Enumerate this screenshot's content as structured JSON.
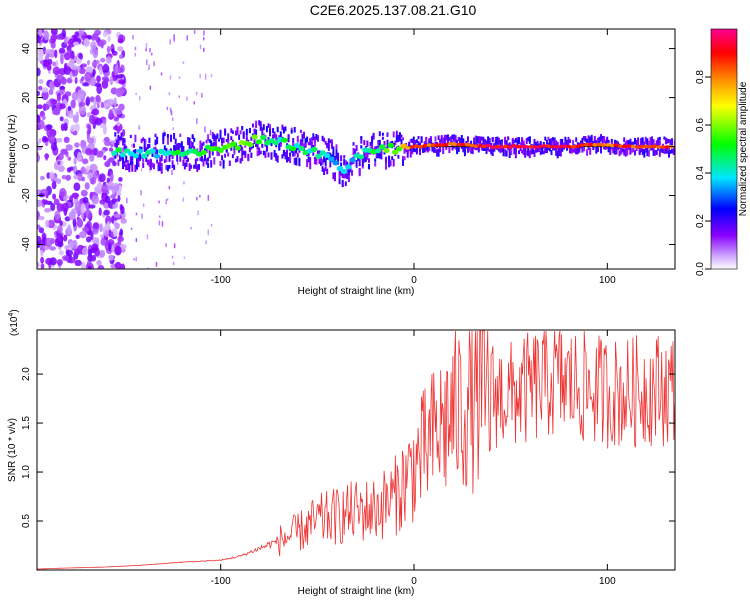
{
  "title": "C2E6.2025.137.08.21.G10",
  "chart_data": [
    {
      "type": "heatmap",
      "xlabel": "Height of straight line (km)",
      "ylabel": "Frequency (Hz)",
      "xlim": [
        -195,
        135
      ],
      "ylim": [
        -50,
        48
      ],
      "x_ticks": [
        -100,
        0,
        100
      ],
      "x_tick_labels": [
        "-100",
        "0",
        "100"
      ],
      "y_ticks": [
        -40,
        -20,
        0,
        20,
        40
      ],
      "y_tick_labels": [
        "-40",
        "-20",
        "0",
        "20",
        "40"
      ],
      "colorbar": {
        "label": "Normalized spectral amplitude",
        "range": [
          0,
          1
        ],
        "ticks": [
          0,
          0.2,
          0.4,
          0.6,
          0.8
        ],
        "tick_labels": [
          "0.0",
          "0.2",
          "0.4",
          "0.6",
          "0.8"
        ],
        "colors": [
          "#ffffff",
          "#8a00ff",
          "#0000ff",
          "#00e6ff",
          "#00ff00",
          "#ffff00",
          "#ff8000",
          "#ff0000",
          "#ff0090"
        ]
      },
      "noise_region_x": [
        -195,
        -150
      ],
      "main_line": [
        {
          "x": -155,
          "y": -2,
          "amp": 0.45
        },
        {
          "x": -140,
          "y": -3,
          "amp": 0.4
        },
        {
          "x": -125,
          "y": -2,
          "amp": 0.45
        },
        {
          "x": -110,
          "y": -2,
          "amp": 0.5
        },
        {
          "x": -100,
          "y": -1,
          "amp": 0.5
        },
        {
          "x": -90,
          "y": 1,
          "amp": 0.55
        },
        {
          "x": -80,
          "y": 3,
          "amp": 0.5
        },
        {
          "x": -70,
          "y": 2,
          "amp": 0.45
        },
        {
          "x": -60,
          "y": 0,
          "amp": 0.45
        },
        {
          "x": -50,
          "y": -3,
          "amp": 0.4
        },
        {
          "x": -42,
          "y": -5,
          "amp": 0.35
        },
        {
          "x": -37,
          "y": -10,
          "amp": 0.4
        },
        {
          "x": -32,
          "y": -6,
          "amp": 0.4
        },
        {
          "x": -28,
          "y": -3,
          "amp": 0.45
        },
        {
          "x": -20,
          "y": -1,
          "amp": 0.5
        },
        {
          "x": -10,
          "y": -1,
          "amp": 0.55
        },
        {
          "x": 0,
          "y": 0,
          "amp": 0.85
        },
        {
          "x": 20,
          "y": 1,
          "amp": 0.85
        },
        {
          "x": 40,
          "y": 0,
          "amp": 0.9
        },
        {
          "x": 60,
          "y": 0,
          "amp": 0.9
        },
        {
          "x": 80,
          "y": 0,
          "amp": 0.9
        },
        {
          "x": 95,
          "y": 1,
          "amp": 0.85
        },
        {
          "x": 110,
          "y": 0,
          "amp": 0.85
        },
        {
          "x": 135,
          "y": 0,
          "amp": 0.85
        }
      ]
    },
    {
      "type": "line",
      "xlabel": "Height of straight line (km)",
      "ylabel": "SNR (10 * v/v)",
      "y_multiplier_label": "(x10",
      "y_multiplier_exp": "4",
      "xlim": [
        -195,
        135
      ],
      "ylim": [
        0,
        2.45
      ],
      "x_ticks": [
        -100,
        0,
        100
      ],
      "x_tick_labels": [
        "-100",
        "0",
        "100"
      ],
      "y_ticks": [
        0.5,
        1.0,
        1.5,
        2.0
      ],
      "y_tick_labels": [
        "0.5",
        "1.0",
        "1.5",
        "2.0"
      ],
      "line_color": "#ee3333",
      "series": [
        {
          "x": [
            -195,
            -180,
            -160,
            -140,
            -120,
            -100,
            -90,
            -80,
            -70,
            -60,
            -50,
            -40,
            -30,
            -20,
            -10,
            0,
            10,
            20,
            30,
            40,
            50,
            60,
            70,
            80,
            90,
            100,
            110,
            120,
            135
          ],
          "y": [
            0.01,
            0.02,
            0.03,
            0.05,
            0.08,
            0.1,
            0.14,
            0.22,
            0.3,
            0.38,
            0.5,
            0.55,
            0.6,
            0.62,
            0.75,
            1.05,
            1.35,
            1.6,
            1.72,
            1.8,
            1.78,
            1.85,
            1.95,
            1.9,
            1.85,
            1.82,
            1.8,
            1.85,
            1.85
          ]
        }
      ]
    }
  ]
}
